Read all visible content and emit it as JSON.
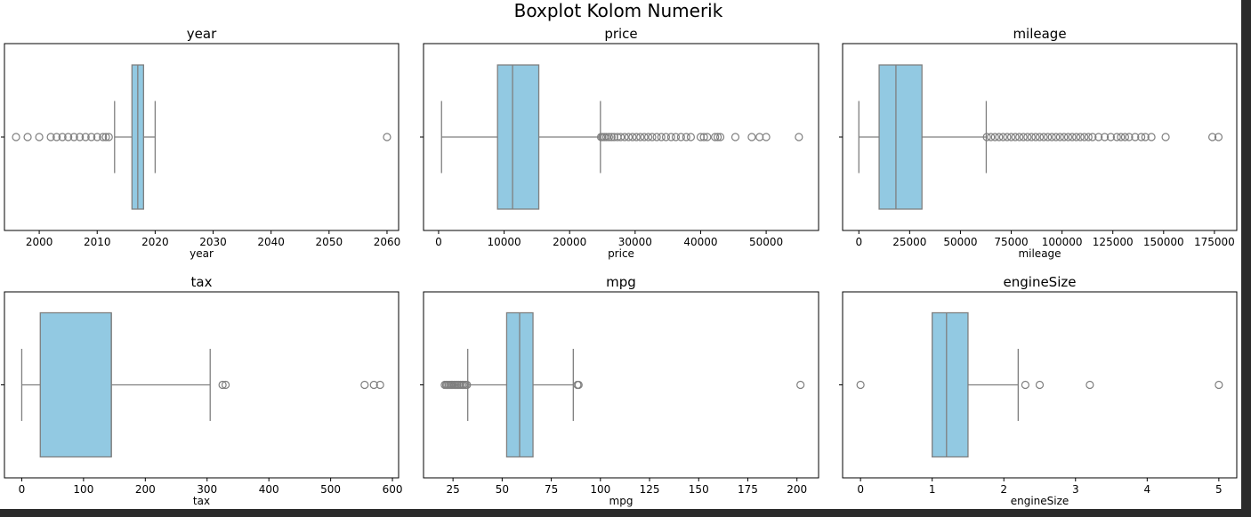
{
  "figure_title": "Boxplot Kolom Numerik",
  "colors": {
    "box_fill": "#92c9e2",
    "line": "#7f7f7f",
    "frame": "#000000"
  },
  "chart_data": [
    {
      "type": "boxplot",
      "title": "year",
      "xlabel": "year",
      "xlim": [
        1994,
        2062
      ],
      "xticks": [
        2000,
        2010,
        2020,
        2030,
        2040,
        2050,
        2060
      ],
      "box": {
        "whisker_low": 2013,
        "q1": 2016,
        "median": 2017,
        "q3": 2018,
        "whisker_high": 2020
      },
      "outliers": [
        1996,
        1998,
        2000,
        2002,
        2003,
        2004,
        2005,
        2006,
        2007,
        2008,
        2009,
        2010,
        2011,
        2011.5,
        2012,
        2060
      ]
    },
    {
      "type": "boxplot",
      "title": "price",
      "xlabel": "price",
      "xlim": [
        -2300,
        58000
      ],
      "xticks": [
        0,
        10000,
        20000,
        30000,
        40000,
        50000
      ],
      "box": {
        "whisker_low": 450,
        "q1": 8999,
        "median": 11291,
        "q3": 15295,
        "whisker_high": 24700
      },
      "outliers": [
        24800,
        25000,
        25300,
        25600,
        26000,
        26400,
        26800,
        27300,
        27800,
        28400,
        29000,
        29600,
        30200,
        30800,
        31400,
        32000,
        32600,
        33300,
        34000,
        34700,
        35500,
        36200,
        37000,
        37800,
        38500,
        40000,
        40500,
        41000,
        42200,
        42600,
        43000,
        45300,
        47800,
        49000,
        50000,
        54995
      ]
    },
    {
      "type": "boxplot",
      "title": "mileage",
      "xlabel": "mileage",
      "xlim": [
        -8000,
        186000
      ],
      "xticks": [
        0,
        25000,
        50000,
        75000,
        100000,
        125000,
        150000,
        175000
      ],
      "box": {
        "whisker_low": 1,
        "q1": 9987,
        "median": 18242,
        "q3": 31060,
        "whisker_high": 62700
      },
      "outliers": [
        63000,
        65000,
        67000,
        69000,
        71000,
        73000,
        75000,
        77000,
        79000,
        81000,
        83000,
        85000,
        87000,
        89000,
        91000,
        93000,
        95000,
        97000,
        99000,
        101000,
        103000,
        105000,
        107000,
        109000,
        111000,
        113000,
        115000,
        118000,
        121000,
        124000,
        127000,
        129000,
        131000,
        133000,
        136000,
        139000,
        141000,
        144000,
        151000,
        174000,
        177000
      ]
    },
    {
      "type": "boxplot",
      "title": "tax",
      "xlabel": "tax",
      "xlim": [
        -28,
        610
      ],
      "xticks": [
        0,
        100,
        200,
        300,
        400,
        500,
        600
      ],
      "box": {
        "whisker_low": 0,
        "q1": 30,
        "median": 145,
        "q3": 145,
        "whisker_high": 305
      },
      "outliers": [
        325,
        330,
        555,
        570,
        580
      ]
    },
    {
      "type": "boxplot",
      "title": "mpg",
      "xlabel": "mpg",
      "xlim": [
        10,
        211
      ],
      "xticks": [
        25,
        50,
        75,
        100,
        125,
        150,
        175,
        200
      ],
      "box": {
        "whisker_low": 32.5,
        "q1": 52.3,
        "median": 58.9,
        "q3": 65.7,
        "whisker_high": 86.2
      },
      "outliers": [
        20.8,
        21.5,
        22.1,
        22.8,
        23.5,
        24.1,
        24.8,
        25.7,
        26.4,
        27.2,
        28,
        28.8,
        29.7,
        30.4,
        31.4,
        32.1,
        88.3,
        88.9,
        201.8
      ]
    },
    {
      "type": "boxplot",
      "title": "engineSize",
      "xlabel": "engineSize",
      "xlim": [
        -0.25,
        5.25
      ],
      "xticks": [
        0,
        1,
        2,
        3,
        4,
        5
      ],
      "box": {
        "whisker_low": 1.0,
        "q1": 1.0,
        "median": 1.2,
        "q3": 1.5,
        "whisker_high": 2.2
      },
      "outliers": [
        0,
        2.3,
        2.5,
        3.2,
        5.0
      ]
    }
  ]
}
